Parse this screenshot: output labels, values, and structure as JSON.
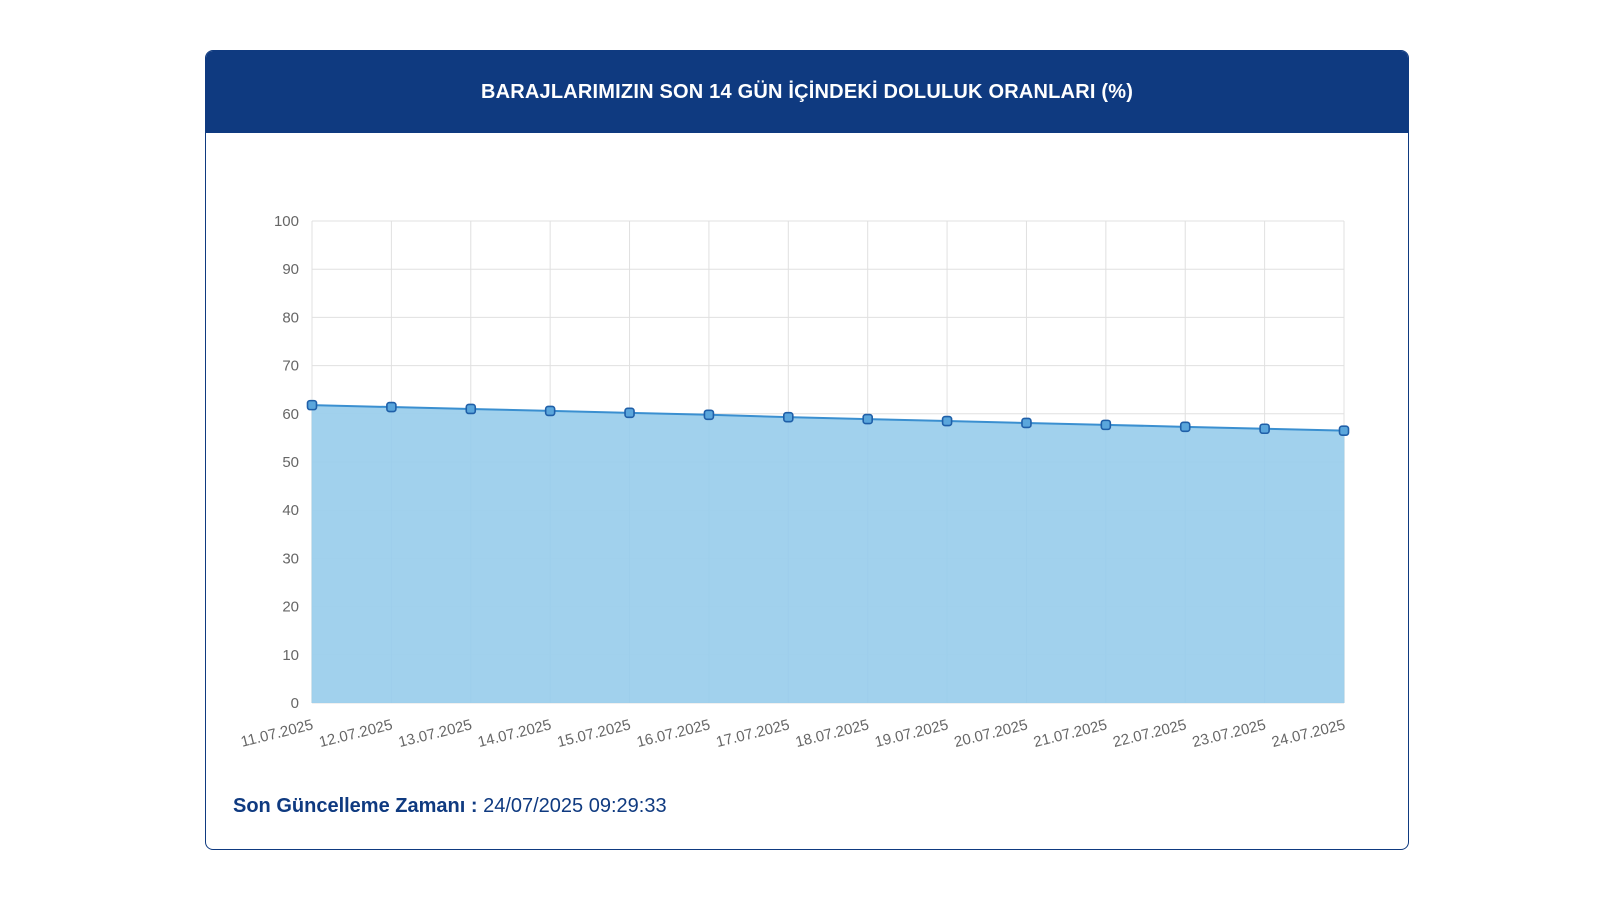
{
  "header": {
    "title": "BARAJLARIMIZIN SON 14 GÜN İÇİNDEKİ DOLULUK ORANLARI (%)"
  },
  "footer": {
    "label": "Son Güncelleme Zamanı :",
    "value": "24/07/2025 09:29:33"
  },
  "colors": {
    "header_bg": "#0f3a80",
    "area_fill": "#9ccfec",
    "line": "#3a8fd0",
    "marker_stroke": "#1f5fa8",
    "grid": "#e0e0e0"
  },
  "chart_data": {
    "type": "area",
    "title": "BARAJLARIMIZIN SON 14 GÜN İÇİNDEKİ DOLULUK ORANLARI (%)",
    "xlabel": "",
    "ylabel": "",
    "categories": [
      "11.07.2025",
      "12.07.2025",
      "13.07.2025",
      "14.07.2025",
      "15.07.2025",
      "16.07.2025",
      "17.07.2025",
      "18.07.2025",
      "19.07.2025",
      "20.07.2025",
      "21.07.2025",
      "22.07.2025",
      "23.07.2025",
      "24.07.2025"
    ],
    "series": [
      {
        "values": [
          61.8,
          61.4,
          61.0,
          60.6,
          60.2,
          59.8,
          59.3,
          58.9,
          58.5,
          58.1,
          57.7,
          57.3,
          56.9,
          56.5
        ]
      }
    ],
    "ylim": [
      0,
      100
    ],
    "yticks": [
      "0",
      "10",
      "20",
      "30",
      "40",
      "50",
      "60",
      "70",
      "80",
      "90",
      "100"
    ],
    "grid": true,
    "legend": "none"
  }
}
